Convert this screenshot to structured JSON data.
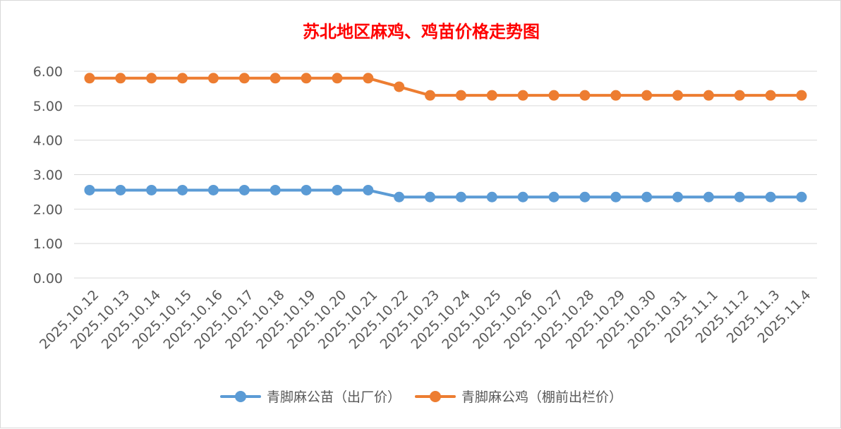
{
  "chart_data": {
    "type": "line",
    "title": "苏北地区麻鸡、鸡苗价格走势图",
    "xlabel": "",
    "ylabel": "",
    "ylim": [
      0,
      6
    ],
    "y_ticks": [
      "0.00",
      "1.00",
      "2.00",
      "3.00",
      "4.00",
      "5.00",
      "6.00"
    ],
    "grid": true,
    "legend_position": "bottom",
    "categories": [
      "2025.10.12",
      "2025.10.13",
      "2025.10.14",
      "2025.10.15",
      "2025.10.16",
      "2025.10.17",
      "2025.10.18",
      "2025.10.19",
      "2025.10.20",
      "2025.10.21",
      "2025.10.22",
      "2025.10.23",
      "2025.10.24",
      "2025.10.25",
      "2025.10.26",
      "2025.10.27",
      "2025.10.28",
      "2025.10.29",
      "2025.10.30",
      "2025.10.31",
      "2025.11.1",
      "2025.11.2",
      "2025.11.3",
      "2025.11.4"
    ],
    "series": [
      {
        "name": "青脚麻公苗（出厂价）",
        "color": "#5b9bd5",
        "values": [
          2.55,
          2.55,
          2.55,
          2.55,
          2.55,
          2.55,
          2.55,
          2.55,
          2.55,
          2.55,
          2.35,
          2.35,
          2.35,
          2.35,
          2.35,
          2.35,
          2.35,
          2.35,
          2.35,
          2.35,
          2.35,
          2.35,
          2.35,
          2.35
        ]
      },
      {
        "name": "青脚麻公鸡（棚前出栏价）",
        "color": "#ed7d31",
        "values": [
          5.8,
          5.8,
          5.8,
          5.8,
          5.8,
          5.8,
          5.8,
          5.8,
          5.8,
          5.8,
          5.55,
          5.3,
          5.3,
          5.3,
          5.3,
          5.3,
          5.3,
          5.3,
          5.3,
          5.3,
          5.3,
          5.3,
          5.3,
          5.3
        ]
      }
    ]
  }
}
